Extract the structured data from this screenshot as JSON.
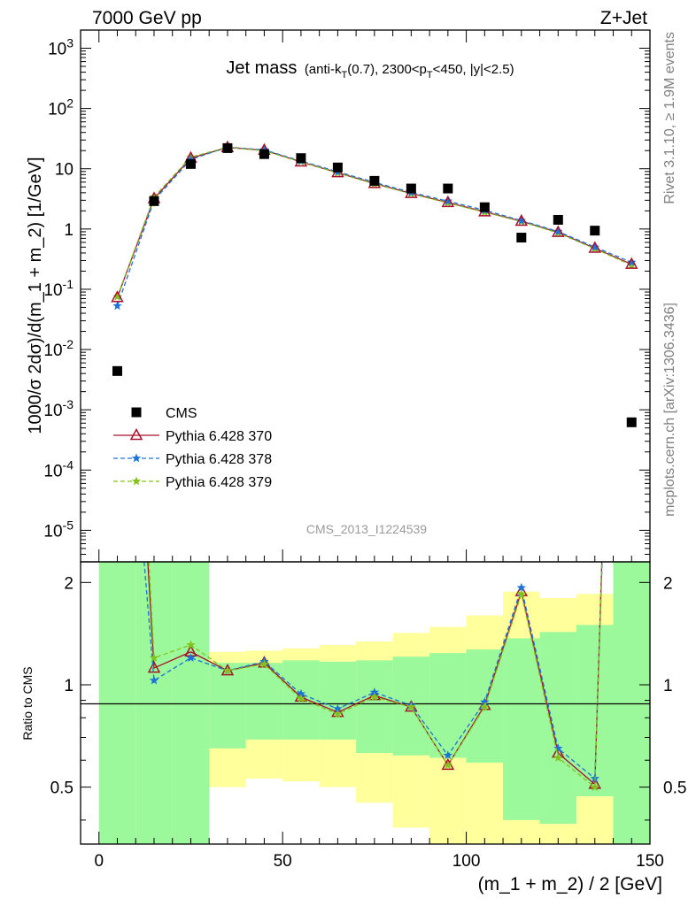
{
  "header": {
    "left": "7000 GeV pp",
    "right": "Z+Jet"
  },
  "side_labels": {
    "rivet": "Rivet 3.1.10, ≥ 1.9M events",
    "mcplots": "mcplots.cern.ch [arXiv:1306.3436]"
  },
  "analysis_id": "CMS_2013_I1224539",
  "chart_data": [
    {
      "type": "scatter",
      "panel": "main",
      "title_main": "Jet mass",
      "title_cuts": "(anti-k_T(0.7), 2300<p_T<450, |y|<2.5)",
      "ylabel": "1000/σ 2dσ)/d(m_1 + m_2) [1/GeV]",
      "xlabel": "",
      "yscale": "log",
      "ylim": [
        3e-06,
        2000
      ],
      "xlim": [
        -5,
        150
      ],
      "y_ticks": [
        "10^-5",
        "10^-4",
        "10^-3",
        "10^-2",
        "10^-1",
        "1",
        "10",
        "10^2",
        "10^3"
      ],
      "x": [
        5,
        15,
        25,
        35,
        45,
        55,
        65,
        75,
        85,
        95,
        105,
        115,
        125,
        135,
        145
      ],
      "legend_position": "center-left",
      "series": [
        {
          "name": "CMS",
          "style": "data",
          "color": "#000000",
          "values": [
            0.0044,
            2.9,
            12.0,
            22.0,
            17.5,
            15.0,
            10.5,
            6.3,
            4.7,
            4.7,
            2.3,
            0.72,
            1.42,
            0.94,
            0.00062
          ]
        },
        {
          "name": "Pythia 6.428 370",
          "style": "solid-triangle",
          "color": "#a8112b",
          "values": [
            0.073,
            3.2,
            15.0,
            22.5,
            20.3,
            13.0,
            8.6,
            5.7,
            3.9,
            2.75,
            1.93,
            1.35,
            0.88,
            0.48,
            0.26
          ]
        },
        {
          "name": "Pythia 6.428 378",
          "style": "dashed-star",
          "color": "#1a73d9",
          "values": [
            0.053,
            3.0,
            14.2,
            23.0,
            20.5,
            13.5,
            8.9,
            5.95,
            4.05,
            2.9,
            2.05,
            1.38,
            0.91,
            0.5,
            0.28
          ]
        },
        {
          "name": "Pythia 6.428 379",
          "style": "dashed-star",
          "color": "#83c21a",
          "values": [
            0.075,
            3.4,
            15.6,
            22.8,
            19.8,
            13.1,
            8.5,
            5.6,
            3.85,
            2.7,
            1.9,
            1.33,
            0.86,
            0.47,
            0.25
          ]
        }
      ]
    },
    {
      "type": "line",
      "panel": "ratio",
      "ylabel": "Ratio to CMS",
      "xlabel": "(m_1 + m_2) / 2 [GeV]",
      "ylim": [
        0.34,
        2.3
      ],
      "xlim": [
        -5,
        150
      ],
      "y_ticks": [
        0.5,
        1,
        2
      ],
      "x_ticks": [
        0,
        50,
        100,
        150
      ],
      "reference_line": 1,
      "band_edges": [
        0,
        10,
        20,
        30,
        40,
        50,
        60,
        70,
        80,
        90,
        100,
        110,
        120,
        130,
        140,
        150
      ],
      "band_inner": {
        "color": "#9bf99b",
        "low": [
          0.34,
          0.34,
          0.34,
          0.65,
          0.69,
          0.69,
          0.69,
          0.63,
          0.62,
          0.61,
          0.59,
          0.4,
          0.39,
          0.47,
          0.34
        ],
        "high": [
          2.3,
          2.3,
          2.3,
          1.16,
          1.16,
          1.18,
          1.17,
          1.18,
          1.21,
          1.24,
          1.27,
          1.37,
          1.43,
          1.5,
          2.3
        ]
      },
      "band_outer": {
        "color": "#ffff9b",
        "low": [
          0.34,
          0.34,
          0.34,
          0.5,
          0.53,
          0.52,
          0.5,
          0.45,
          0.38,
          0.34,
          0.34,
          0.34,
          0.34,
          0.34,
          0.34
        ],
        "high": [
          2.3,
          1.75,
          1.75,
          1.25,
          1.26,
          1.28,
          1.31,
          1.34,
          1.42,
          1.48,
          1.6,
          1.88,
          1.8,
          1.85,
          2.3
        ]
      },
      "series": [
        {
          "name": "Pythia 6.428 370",
          "style": "solid-triangle",
          "color": "#a8112b",
          "x": [
            13.3,
            15,
            25,
            35,
            45,
            55,
            65,
            75,
            85,
            95,
            105,
            115,
            125,
            135,
            136.9
          ],
          "values": [
            2.3,
            1.12,
            1.25,
            1.1,
            1.16,
            0.92,
            0.83,
            0.93,
            0.86,
            0.58,
            0.87,
            1.88,
            0.63,
            0.51,
            2.3
          ]
        },
        {
          "name": "Pythia 6.428 378",
          "style": "dashed-star",
          "color": "#1a73d9",
          "x": [
            12.3,
            15,
            25,
            35,
            45,
            55,
            65,
            75,
            85,
            95,
            105,
            115,
            125,
            135,
            137.0
          ],
          "values": [
            2.3,
            1.03,
            1.2,
            1.1,
            1.17,
            0.94,
            0.85,
            0.95,
            0.87,
            0.62,
            0.89,
            1.93,
            0.65,
            0.53,
            2.3
          ]
        },
        {
          "name": "Pythia 6.428 379",
          "style": "dashed-star",
          "color": "#83c21a",
          "x": [
            13.6,
            15,
            25,
            35,
            45,
            55,
            65,
            75,
            85,
            95,
            105,
            115,
            125,
            135,
            136.9
          ],
          "values": [
            2.3,
            1.2,
            1.31,
            1.1,
            1.15,
            0.91,
            0.82,
            0.92,
            0.86,
            0.58,
            0.86,
            1.85,
            0.61,
            0.5,
            2.3
          ]
        }
      ]
    }
  ]
}
